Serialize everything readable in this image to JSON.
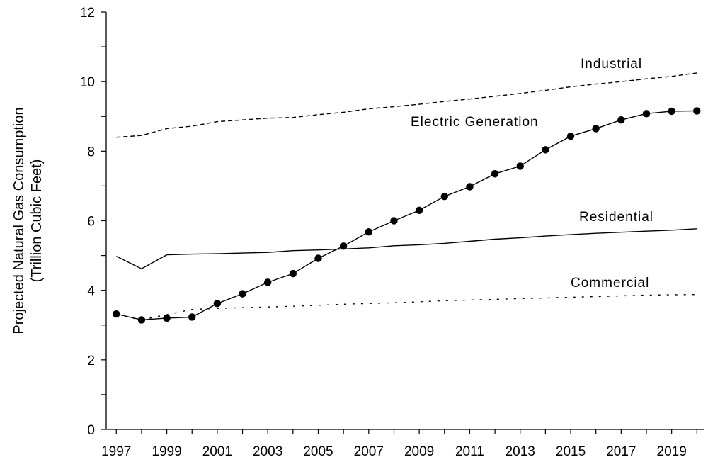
{
  "chart_data": {
    "type": "line",
    "title": "",
    "xlabel": "",
    "ylabel_lines": [
      "Projected Natural Gas Consumption",
      "(Trillion Cubic Feet)"
    ],
    "x": [
      1997,
      1998,
      1999,
      2000,
      2001,
      2002,
      2003,
      2004,
      2005,
      2006,
      2007,
      2008,
      2009,
      2010,
      2011,
      2012,
      2013,
      2014,
      2015,
      2016,
      2017,
      2018,
      2019,
      2020
    ],
    "xlim": [
      1996.6,
      2020.3
    ],
    "ylim": [
      0,
      12
    ],
    "x_tick_labels": [
      "1997",
      "1999",
      "2001",
      "2003",
      "2005",
      "2007",
      "2009",
      "2011",
      "2013",
      "2015",
      "2017",
      "2019"
    ],
    "y_tick_labels": [
      "0",
      "2",
      "4",
      "6",
      "8",
      "10",
      "12"
    ],
    "y_ticks": [
      0,
      2,
      4,
      6,
      8,
      10,
      12
    ],
    "grid": false,
    "legend": "none (series labelled directly on the plot)",
    "series": [
      {
        "name": "Industrial",
        "style": "dashed",
        "color": "#000000",
        "values": [
          8.4,
          8.45,
          8.65,
          8.72,
          8.85,
          8.9,
          8.95,
          8.97,
          9.05,
          9.12,
          9.22,
          9.28,
          9.35,
          9.43,
          9.5,
          9.58,
          9.66,
          9.75,
          9.85,
          9.93,
          10.0,
          10.08,
          10.15,
          10.25
        ]
      },
      {
        "name": "Electric Generation",
        "style": "solid-markers",
        "color": "#000000",
        "values": [
          3.32,
          3.15,
          3.2,
          3.23,
          3.62,
          3.9,
          4.23,
          4.48,
          4.92,
          5.27,
          5.68,
          6.0,
          6.3,
          6.7,
          6.98,
          7.35,
          7.57,
          8.04,
          8.43,
          8.65,
          8.9,
          9.08,
          9.15,
          9.16
        ]
      },
      {
        "name": "Residential",
        "style": "solid",
        "color": "#000000",
        "values": [
          4.98,
          4.62,
          5.02,
          5.04,
          5.05,
          5.07,
          5.09,
          5.14,
          5.16,
          5.19,
          5.22,
          5.28,
          5.31,
          5.35,
          5.41,
          5.47,
          5.51,
          5.56,
          5.6,
          5.64,
          5.67,
          5.7,
          5.73,
          5.77
        ]
      },
      {
        "name": "Commercial",
        "style": "dotted",
        "color": "#000000",
        "values": [
          3.3,
          3.15,
          3.3,
          3.45,
          3.48,
          3.5,
          3.52,
          3.54,
          3.57,
          3.6,
          3.62,
          3.64,
          3.67,
          3.7,
          3.72,
          3.74,
          3.76,
          3.78,
          3.8,
          3.82,
          3.84,
          3.86,
          3.87,
          3.88
        ]
      }
    ]
  }
}
